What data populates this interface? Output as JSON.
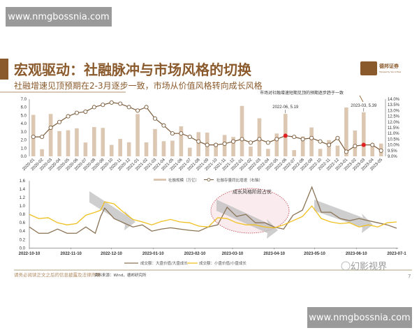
{
  "watermarks": {
    "top": "www.nmgbossnia.com",
    "bottom": "www.nmgbossnia.com",
    "corner": "幻影视界"
  },
  "header": {
    "title": "宏观驱动：社融脉冲与市场风格的切换",
    "subtitle": "社融增速见顶预期在2-3月逐步一致，市场从价值风格转向成长风格",
    "logo_text": "德邦证券",
    "logo_subtext": "Topsperity Securities"
  },
  "colors": {
    "brand": "#8a5a2c",
    "bar": "#dcc7b2",
    "line": "#7a5a3a",
    "highlight": "#e02020",
    "large_cap": "#8b7355",
    "small_cap": "#f0c020"
  },
  "chart_data": [
    {
      "type": "bar+line",
      "annotation": "市场对社融增速短期见顶的预期逐步趋于一致",
      "categories": [
        "2020-01",
        "2020-02",
        "2020-03",
        "2020-04",
        "2020-05",
        "2020-06",
        "2020-07",
        "2020-08",
        "2020-09",
        "2020-10",
        "2020-11",
        "2020-12",
        "2021-01",
        "2021-02",
        "2021-03",
        "2021-04",
        "2021-05",
        "2021-06",
        "2021-07",
        "2021-08",
        "2021-09",
        "2021-10",
        "2021-11",
        "2021-12",
        "2022-01",
        "2022-02",
        "2022-03",
        "2022-04",
        "2022-05",
        "2022-06",
        "2022-07",
        "2022-08",
        "2022-09",
        "2022-10",
        "2022-11",
        "2022-12",
        "2023-01",
        "2023-02",
        "2023-03",
        "2023-04",
        "2023-05"
      ],
      "series": [
        {
          "name": "社融规模（万亿）",
          "type": "bar",
          "axis": "left",
          "values": [
            5.07,
            0.87,
            5.18,
            3.09,
            3.19,
            3.43,
            1.69,
            3.58,
            3.48,
            1.4,
            2.13,
            1.72,
            5.17,
            1.71,
            3.34,
            1.85,
            1.92,
            3.67,
            1.06,
            2.96,
            2.9,
            1.59,
            2.61,
            2.37,
            6.17,
            1.19,
            4.65,
            0.91,
            2.79,
            5.19,
            0.76,
            2.43,
            3.53,
            0.91,
            1.99,
            1.31,
            5.98,
            3.16,
            5.39,
            1.22,
            1.56
          ]
        },
        {
          "name": "社融存量同比增速（右轴）",
          "type": "line",
          "axis": "right",
          "values": [
            10.7,
            10.7,
            11.5,
            12.0,
            12.5,
            12.8,
            12.9,
            13.3,
            13.5,
            13.7,
            13.6,
            13.3,
            13.0,
            13.3,
            12.3,
            11.7,
            11.0,
            11.0,
            10.7,
            10.3,
            10.0,
            10.0,
            10.1,
            10.3,
            10.5,
            10.2,
            10.5,
            10.2,
            10.5,
            10.8,
            10.7,
            10.5,
            10.6,
            10.3,
            10.0,
            10.6,
            9.4,
            9.9,
            10.0,
            10.0,
            9.5
          ]
        }
      ],
      "highlights": [
        {
          "category": "2022-06",
          "label": "2022-06, 5.19"
        },
        {
          "category": "2023-03",
          "label": "2023-03, 5.39"
        }
      ],
      "ylim_left": [
        0,
        7
      ],
      "ylim_right": [
        9,
        14
      ],
      "yticks_left": [
        "0.0",
        "1.0",
        "2.0",
        "3.0",
        "4.0",
        "5.0",
        "6.0",
        "7.0"
      ],
      "yticks_right": [
        "9.0%",
        "9.5%",
        "10.0%",
        "10.5%",
        "11.0%",
        "11.5%",
        "12.0%",
        "12.5%",
        "13.0%",
        "13.5%",
        "14.0%"
      ],
      "legend": "bottom"
    },
    {
      "type": "line",
      "annotation": "成长风格阶段占优",
      "ylim": [
        0,
        1.6
      ],
      "yticks": [
        "0.0",
        "0.2",
        "0.4",
        "0.6",
        "0.8",
        "1.0",
        "1.2",
        "1.4",
        "1.6"
      ],
      "xticks": [
        "2022-10-10",
        "2022-11-10",
        "2022-12-10",
        "2023-01-10",
        "2023-02-10",
        "2023-03-10",
        "2023-04-10",
        "2023-05-10",
        "2023-06-10",
        "2023-07-10"
      ],
      "xtick_labels": [
        "2022-10-10",
        "2022-11-10",
        "2022-12-10",
        "2023-01-10",
        "2023-02-10",
        "2023-03-10",
        "2023-04-10",
        "2023-05-10",
        "2023-06-10",
        "2023-07-1"
      ],
      "x": [
        "2022-10-10",
        "2022-10-17",
        "2022-10-24",
        "2022-10-31",
        "2022-11-07",
        "2022-11-14",
        "2022-11-21",
        "2022-11-28",
        "2022-12-02",
        "2022-12-05",
        "2022-12-12",
        "2022-12-19",
        "2022-12-26",
        "2023-01-02",
        "2023-01-09",
        "2023-01-16",
        "2023-01-23",
        "2023-01-30",
        "2023-02-06",
        "2023-02-13",
        "2023-02-20",
        "2023-02-27",
        "2023-03-06",
        "2023-03-13",
        "2023-03-20",
        "2023-03-27",
        "2023-04-03",
        "2023-04-10",
        "2023-04-17",
        "2023-04-24",
        "2023-05-01",
        "2023-05-08",
        "2023-05-15",
        "2023-05-22",
        "2023-05-29",
        "2023-06-05",
        "2023-06-12",
        "2023-06-19",
        "2023-06-26",
        "2023-07-03",
        "2023-07-10"
      ],
      "series": [
        {
          "name": "成交额：大盘价值/大盘成长",
          "color": "#8b7355",
          "values": [
            0.5,
            0.35,
            0.35,
            0.45,
            0.35,
            0.35,
            0.5,
            0.35,
            0.75,
            0.95,
            0.7,
            0.6,
            0.5,
            0.55,
            0.4,
            0.45,
            0.48,
            0.45,
            0.42,
            0.4,
            0.5,
            0.55,
            0.97,
            0.75,
            0.8,
            0.6,
            0.6,
            0.5,
            0.45,
            0.78,
            0.9,
            1.45,
            0.85,
            0.85,
            0.7,
            0.65,
            0.7,
            0.65,
            0.6,
            0.55,
            0.47
          ]
        },
        {
          "name": "成交额：小盘价值/小盘成长",
          "color": "#f0c020",
          "values": [
            0.8,
            0.7,
            0.72,
            0.6,
            0.55,
            0.58,
            0.78,
            0.85,
            0.9,
            1.1,
            1.05,
            0.85,
            0.68,
            0.62,
            0.55,
            0.63,
            0.68,
            0.62,
            0.6,
            0.52,
            0.5,
            0.72,
            0.7,
            0.6,
            0.55,
            0.55,
            0.5,
            0.48,
            0.55,
            0.65,
            0.75,
            1.0,
            0.7,
            0.62,
            0.58,
            0.6,
            0.5,
            0.55,
            0.5,
            0.6,
            0.62
          ]
        }
      ],
      "legend": "bottom"
    }
  ],
  "footer": {
    "disclaimer": "请务必阅读正文之后的信息披露及法律声明",
    "source": "资料来源：Wind，德邦研究所",
    "page": "7"
  }
}
